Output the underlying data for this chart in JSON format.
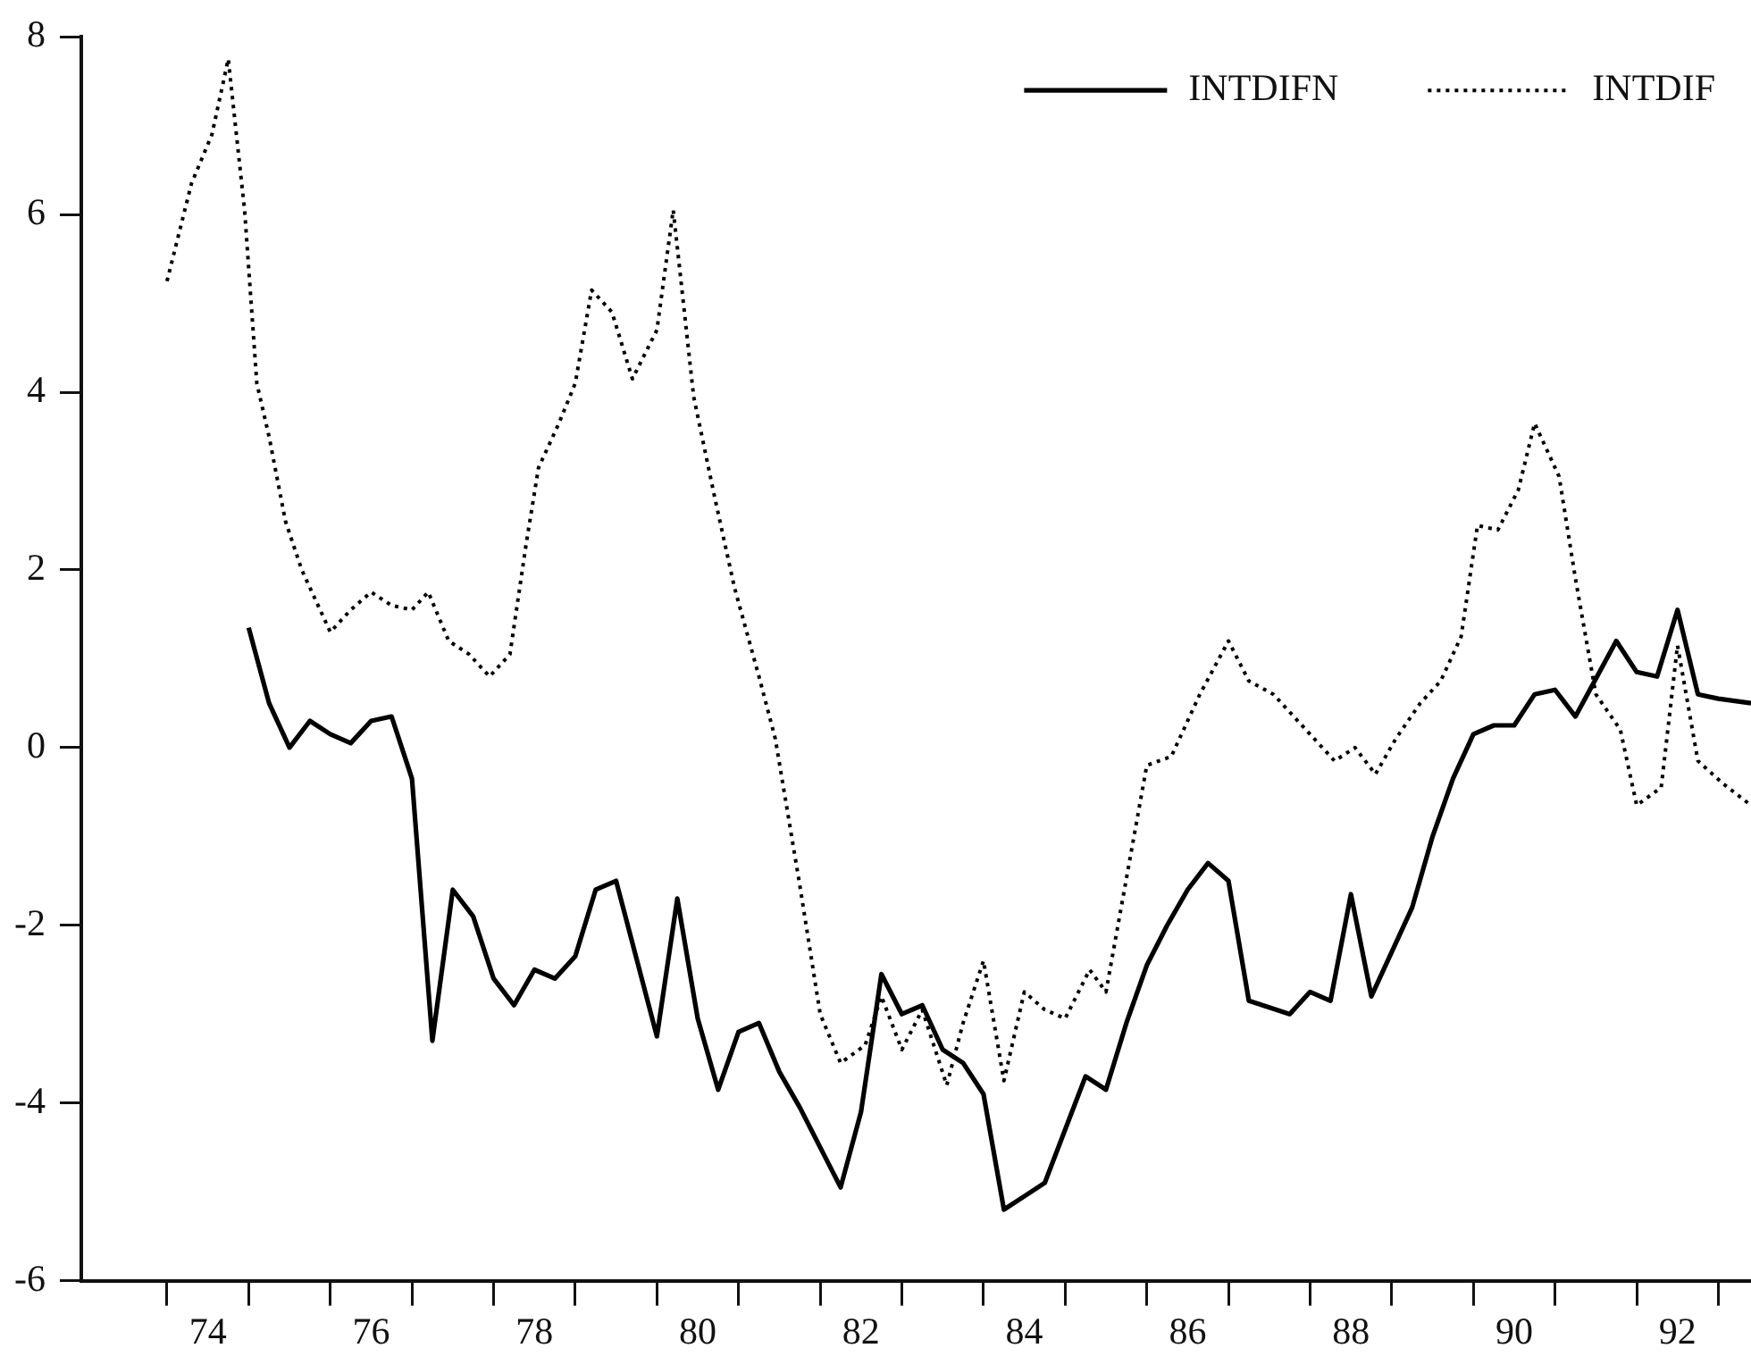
{
  "chart_data": {
    "type": "line",
    "xlim": [
      72.95,
      93.4
    ],
    "ylim": [
      -6,
      8
    ],
    "xticks": [
      {
        "value": 74,
        "label": null
      },
      {
        "value": 74.5,
        "label": "74"
      },
      {
        "value": 75,
        "label": null
      },
      {
        "value": 76,
        "label": null
      },
      {
        "value": 76.5,
        "label": "76"
      },
      {
        "value": 77,
        "label": null
      },
      {
        "value": 78,
        "label": null
      },
      {
        "value": 78.5,
        "label": "78"
      },
      {
        "value": 79,
        "label": null
      },
      {
        "value": 80,
        "label": null
      },
      {
        "value": 80.5,
        "label": "80"
      },
      {
        "value": 81,
        "label": null
      },
      {
        "value": 82,
        "label": null
      },
      {
        "value": 82.5,
        "label": "82"
      },
      {
        "value": 83,
        "label": null
      },
      {
        "value": 84,
        "label": null
      },
      {
        "value": 84.5,
        "label": "84"
      },
      {
        "value": 85,
        "label": null
      },
      {
        "value": 86,
        "label": null
      },
      {
        "value": 86.5,
        "label": "86"
      },
      {
        "value": 87,
        "label": null
      },
      {
        "value": 88,
        "label": null
      },
      {
        "value": 88.5,
        "label": "88"
      },
      {
        "value": 89,
        "label": null
      },
      {
        "value": 90,
        "label": null
      },
      {
        "value": 90.5,
        "label": "90"
      },
      {
        "value": 91,
        "label": null
      },
      {
        "value": 92,
        "label": null
      },
      {
        "value": 92.5,
        "label": "92"
      },
      {
        "value": 93,
        "label": null
      }
    ],
    "yticks": [
      -6,
      -4,
      -2,
      0,
      2,
      4,
      6,
      8
    ],
    "grid": false,
    "legend": "top right",
    "marker": "none",
    "series": [
      {
        "name": "INTDIFN",
        "color": "#000000",
        "line_style": "solid",
        "x": [
          75,
          75.25,
          75.5,
          75.75,
          76,
          76.25,
          76.5,
          76.75,
          77,
          77.25,
          77.5,
          77.75,
          78,
          78.25,
          78.5,
          78.75,
          79,
          79.25,
          79.5,
          80,
          80.25,
          80.5,
          80.75,
          81,
          81.25,
          81.5,
          81.75,
          82,
          82.25,
          82.5,
          82.75,
          83,
          83.25,
          83.5,
          83.75,
          84,
          84.25,
          84.5,
          84.75,
          85,
          85.25,
          85.5,
          85.75,
          86,
          86.25,
          86.5,
          86.75,
          87,
          87.25,
          87.75,
          88,
          88.25,
          88.5,
          88.75,
          89,
          89.25,
          89.5,
          89.75,
          90,
          90.25,
          90.5,
          90.75,
          91,
          91.25,
          91.75,
          92,
          92.25,
          92.5,
          92.75,
          93,
          93.4
        ],
        "values": [
          1.35,
          0.5,
          0,
          0.3,
          0.15,
          0.05,
          0.3,
          0.35,
          -0.35,
          -3.3,
          -1.6,
          -1.9,
          -2.6,
          -2.9,
          -2.5,
          -2.6,
          -2.35,
          -1.6,
          -1.5,
          -3.25,
          -1.7,
          -3.05,
          -3.85,
          -3.2,
          -3.1,
          -3.65,
          -4.05,
          -4.5,
          -4.95,
          -4.1,
          -2.55,
          -3,
          -2.9,
          -3.4,
          -3.55,
          -3.9,
          -5.2,
          -5.05,
          -4.9,
          -4.3,
          -3.7,
          -3.85,
          -3.1,
          -2.45,
          -2,
          -1.6,
          -1.3,
          -1.5,
          -2.85,
          -3,
          -2.75,
          -2.85,
          -1.65,
          -2.8,
          -2.3,
          -1.8,
          -1,
          -0.35,
          0.15,
          0.25,
          0.25,
          0.6,
          0.65,
          0.35,
          1.2,
          0.85,
          0.8,
          1.55,
          0.6,
          0.55,
          0.5
        ]
      },
      {
        "name": "INTDIF",
        "color": "#000000",
        "line_style": "dotted",
        "x": [
          74,
          74.3,
          74.55,
          74.75,
          74.95,
          75.1,
          75.25,
          75.45,
          75.65,
          76,
          76.25,
          76.5,
          76.75,
          77,
          77.2,
          77.45,
          77.7,
          77.95,
          78.2,
          78.4,
          78.55,
          78.8,
          79,
          79.2,
          79.45,
          79.7,
          80,
          80.2,
          80.45,
          80.7,
          80.95,
          81.25,
          81.45,
          81.75,
          82,
          82.25,
          82.55,
          82.75,
          83,
          83.25,
          83.55,
          83.75,
          84,
          84.25,
          84.5,
          84.75,
          85,
          85.3,
          85.5,
          86,
          86.3,
          86.65,
          87,
          87.25,
          87.55,
          87.95,
          88.3,
          88.55,
          88.8,
          89.05,
          89.35,
          89.6,
          89.85,
          90.05,
          90.3,
          90.55,
          90.75,
          91.05,
          91.25,
          91.5,
          91.8,
          92,
          92.3,
          92.5,
          92.75,
          93.05,
          93.4
        ],
        "values": [
          5.25,
          6.35,
          6.9,
          7.75,
          6.05,
          4.1,
          3.5,
          2.55,
          2,
          1.3,
          1.55,
          1.75,
          1.6,
          1.55,
          1.75,
          1.2,
          1.05,
          0.8,
          1.05,
          2.3,
          3.15,
          3.65,
          4.1,
          5.15,
          4.9,
          4.15,
          4.7,
          6.05,
          3.95,
          2.85,
          1.8,
          0.8,
          0.1,
          -1.55,
          -3,
          -3.55,
          -3.35,
          -2.8,
          -3.4,
          -2.95,
          -3.8,
          -3.1,
          -2.4,
          -3.75,
          -2.75,
          -2.95,
          -3.05,
          -2.5,
          -2.75,
          -0.2,
          -0.1,
          0.6,
          1.2,
          0.75,
          0.6,
          0.2,
          -0.15,
          0,
          -0.3,
          0.1,
          0.5,
          0.75,
          1.25,
          2.5,
          2.45,
          2.9,
          3.65,
          3.05,
          1.9,
          0.6,
          0.2,
          -0.65,
          -0.45,
          1.15,
          -0.15,
          -0.4,
          -0.65
        ]
      }
    ]
  }
}
